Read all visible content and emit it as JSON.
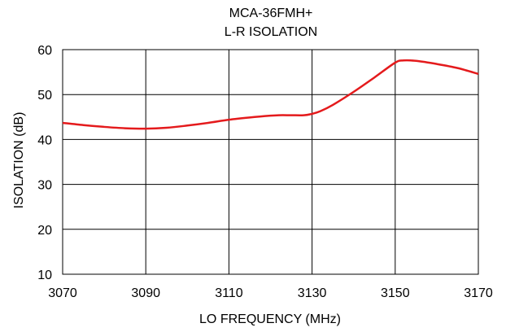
{
  "chart_data": {
    "type": "line",
    "title": "MCA-36FMH+",
    "subtitle": "L-R ISOLATION",
    "xlabel": "LO FREQUENCY (MHz)",
    "ylabel": "ISOLATION (dB)",
    "xlim": [
      3070,
      3170
    ],
    "ylim": [
      10,
      60
    ],
    "xticks": [
      3070,
      3090,
      3110,
      3130,
      3150,
      3170
    ],
    "yticks": [
      10,
      20,
      30,
      40,
      50,
      60
    ],
    "grid": true,
    "series": [
      {
        "color": "#e41a1c",
        "x": [
          3070,
          3075,
          3080,
          3085,
          3090,
          3095,
          3100,
          3105,
          3110,
          3115,
          3120,
          3122,
          3125,
          3128,
          3130,
          3132,
          3135,
          3140,
          3145,
          3150,
          3152,
          3155,
          3160,
          3165,
          3170
        ],
        "y": [
          43.7,
          43.2,
          42.8,
          42.5,
          42.4,
          42.6,
          43.1,
          43.7,
          44.4,
          44.9,
          45.3,
          45.4,
          45.4,
          45.4,
          45.7,
          46.3,
          47.7,
          50.6,
          53.8,
          57.1,
          57.6,
          57.5,
          56.8,
          55.9,
          54.6
        ]
      }
    ]
  }
}
